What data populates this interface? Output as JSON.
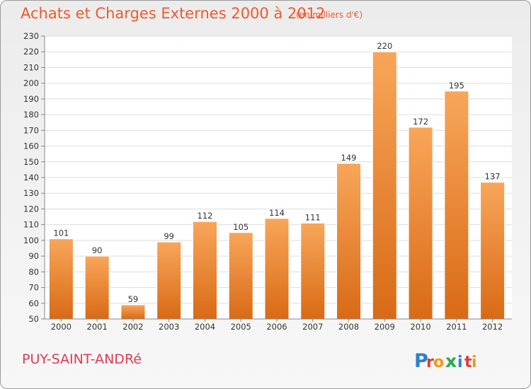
{
  "header": {
    "title": "Achats et Charges Externes 2000 à 2012",
    "unit": "(en milliers d'€)"
  },
  "footer": {
    "place": "PUY-SAINT-ANDRé",
    "logo_text": "Proxiti",
    "logo_letters": [
      "P",
      "r",
      "o",
      "x",
      "i",
      "t",
      "i"
    ],
    "logo_colors": [
      "#2b7fd2",
      "#e23b3b",
      "#f09a1a",
      "#2aa84a",
      "#2b7fd2",
      "#e23b3b",
      "#f09a1a"
    ]
  },
  "colors": {
    "bar_top": "#f8a65a",
    "bar_bottom": "#d96a15",
    "title": "#ee5a2e",
    "place": "#e03a52"
  },
  "chart_data": {
    "type": "bar",
    "title": "Achats et Charges Externes 2000 à 2012",
    "subtitle": "(en milliers d'€)",
    "xlabel": "",
    "ylabel": "",
    "categories": [
      "2000",
      "2001",
      "2002",
      "2003",
      "2004",
      "2005",
      "2006",
      "2007",
      "2008",
      "2009",
      "2010",
      "2011",
      "2012"
    ],
    "values": [
      101,
      90,
      59,
      99,
      112,
      105,
      114,
      111,
      149,
      220,
      172,
      195,
      137
    ],
    "ylim": [
      50,
      230
    ],
    "yticks": [
      50,
      60,
      70,
      80,
      90,
      100,
      110,
      120,
      130,
      140,
      150,
      160,
      170,
      180,
      190,
      200,
      210,
      220,
      230
    ],
    "grid": true,
    "legend": "none"
  }
}
